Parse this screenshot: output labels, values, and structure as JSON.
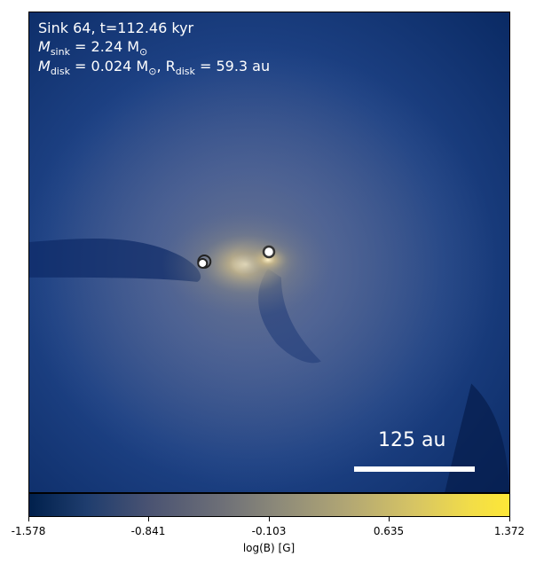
{
  "panel": {
    "line1": "Sink 64, t=112.46 kyr",
    "msink_label": "M",
    "msink_sub": "sink",
    "msink_value": " = 2.24 M",
    "msink_unit_sub": "⊙",
    "mdisk_label": "M",
    "mdisk_sub": "disk",
    "mdisk_value": " = 0.024 M",
    "mdisk_unit_sub": "⊙",
    "rdisk_sep": ", R",
    "rdisk_sub": "disk",
    "rdisk_value": " = 59.3 au"
  },
  "scalebar": {
    "label": "125 au"
  },
  "colorbar": {
    "label": "log(B) [G]",
    "ticks": [
      "-1.578",
      "-0.841",
      "-0.103",
      "0.635",
      "1.372"
    ]
  },
  "colors": {
    "background_dark": "#0a2a64",
    "glow": "#f2dca0",
    "scale": "#ffffff"
  }
}
